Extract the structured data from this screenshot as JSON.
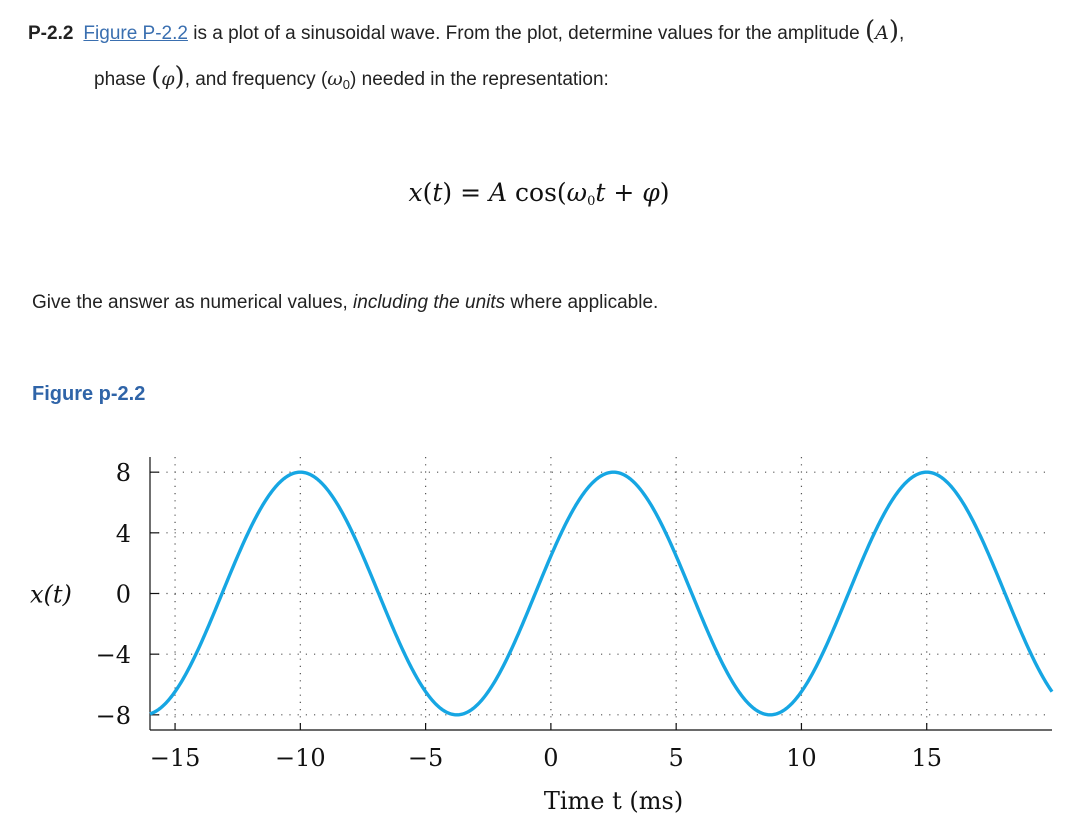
{
  "problem": {
    "number": "P-2.2",
    "figure_link": "Figure P-2.2",
    "text_1": "is a plot of a sinusoidal wave. From the plot, determine values for the amplitude",
    "amp_symbol": "A",
    "text_2": "phase",
    "phase_symbol": "φ",
    "text_3": ", and frequency",
    "omega_symbol": "ω",
    "omega_sub": "0",
    "text_4": "needed in the representation:"
  },
  "equation": {
    "lhs_func": "x",
    "lhs_var": "t",
    "equals": " = ",
    "amp": "A",
    "cos": "cos",
    "omega": "ω",
    "omega_sub": "0",
    "var": "t",
    "plus": " + ",
    "phi": "φ"
  },
  "instruction": {
    "before": "Give the answer as numerical values, ",
    "emphasis": "including the units",
    "after": " where applicable."
  },
  "figure_title": "Figure p-2.2",
  "chart_data": {
    "type": "line",
    "xlabel": "Time t (ms)",
    "ylabel": "x(t)",
    "xlim": [
      -16,
      20
    ],
    "ylim": [
      -9,
      9
    ],
    "xticks": [
      -15,
      -10,
      -5,
      0,
      5,
      10,
      15
    ],
    "yticks": [
      8,
      4,
      0,
      -4,
      -8
    ],
    "xtick_labels": [
      "−15",
      "−10",
      "−5",
      "0",
      "5",
      "10",
      "15"
    ],
    "ytick_labels": [
      "8",
      "4",
      "0",
      "−4",
      "−8"
    ],
    "grid": true,
    "line_color": "#16a6e3",
    "series": [
      {
        "amplitude": 8,
        "period_ms": 12.5,
        "peak_time_ms": 2.5,
        "t_start": -16,
        "t_end": 20
      }
    ]
  }
}
